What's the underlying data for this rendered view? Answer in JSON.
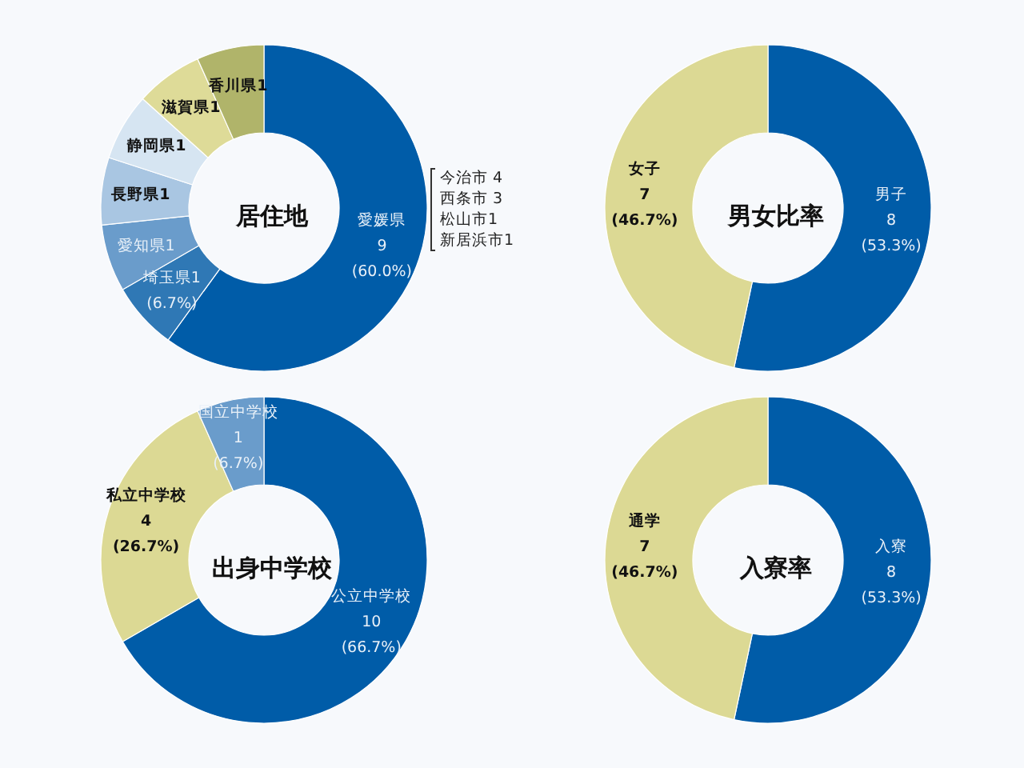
{
  "chart_data": [
    {
      "type": "donut",
      "title": "居住地",
      "categories": [
        "愛媛県",
        "埼玉県",
        "愛知県",
        "長野県",
        "静岡県",
        "滋賀県",
        "香川県"
      ],
      "values": [
        9,
        1,
        1,
        1,
        1,
        1,
        1
      ],
      "colors": [
        "#005ca8",
        "#2f78b5",
        "#6a9ccb",
        "#a9c6e2",
        "#d6e5f2",
        "#dedb98",
        "#b0b46a"
      ],
      "value_labels": [
        "9\n(60.0%)",
        "1\n(6.7%)",
        "1",
        "1",
        "1",
        "1",
        "1"
      ],
      "annotations": [
        "今治市 4\n西条市 3\n松山市1\n新居浜市1"
      ]
    },
    {
      "type": "donut",
      "title": "男女比率",
      "categories": [
        "男子",
        "女子"
      ],
      "values": [
        8,
        7
      ],
      "colors": [
        "#005ca8",
        "#dcd994"
      ],
      "value_labels": [
        "8\n(53.3%)",
        "7\n(46.7%)"
      ]
    },
    {
      "type": "donut",
      "title": "出身中学校",
      "categories": [
        "公立中学校",
        "私立中学校",
        "国立中学校"
      ],
      "values": [
        10,
        4,
        1
      ],
      "colors": [
        "#005ca8",
        "#dcd994",
        "#6a9ccb"
      ],
      "value_labels": [
        "10\n(66.7%)",
        "4\n(26.7%)",
        "1\n(6.7%)"
      ]
    },
    {
      "type": "donut",
      "title": "入寮率",
      "categories": [
        "入寮",
        "通学"
      ],
      "values": [
        8,
        7
      ],
      "colors": [
        "#005ca8",
        "#dcd994"
      ],
      "value_labels": [
        "8\n(53.3%)",
        "7\n(46.7%)"
      ]
    }
  ]
}
